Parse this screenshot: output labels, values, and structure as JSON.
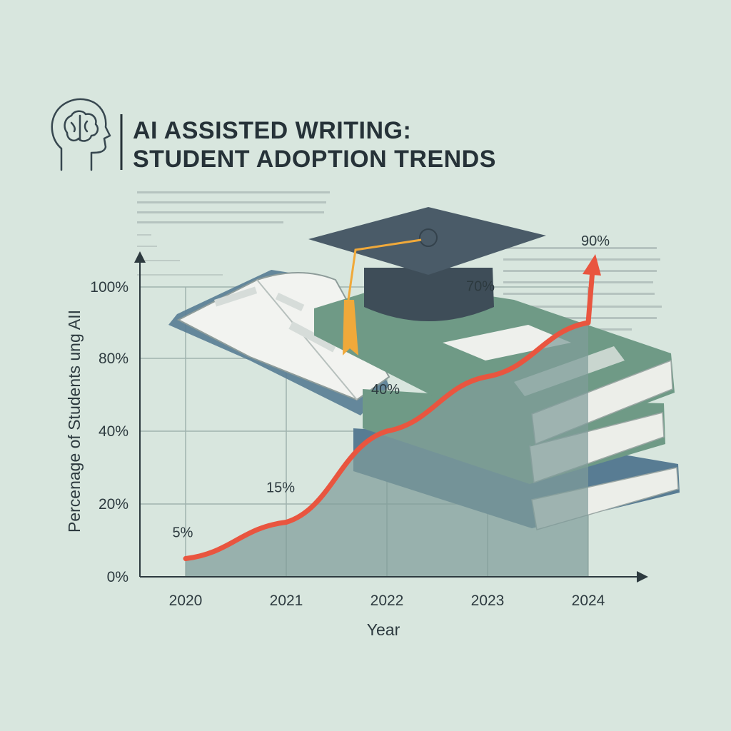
{
  "header": {
    "title_line1": "AI ASSISTED WRITING:",
    "title_line2": "STUDENT ADOPTION TRENDS",
    "icon": "brain-head-icon"
  },
  "colors": {
    "background": "#d8e6de",
    "line": "#e9553f",
    "area": "#7f9c9a",
    "grid": "#9fb3ae",
    "axis": "#2d3a3f",
    "book_green": "#6f9a86",
    "book_blue": "#587c93",
    "cap": "#4a5b68",
    "tassel": "#f0a93a"
  },
  "chart_data": {
    "type": "line",
    "title": "AI ASSISTED WRITING: STUDENT ADOPTION TRENDS",
    "xlabel": "Year",
    "ylabel": "Percenage of Students ung AII",
    "categories": [
      "2020",
      "2021",
      "2022",
      "2023",
      "2024"
    ],
    "y_tick_labels": [
      "0%",
      "20%",
      "40%",
      "80%",
      "100%"
    ],
    "series": [
      {
        "values": [
          5,
          15,
          40,
          70,
          90
        ],
        "data_labels": [
          "5%",
          "15%",
          "40%",
          "70%",
          "90%"
        ]
      }
    ],
    "grid": true,
    "area_fill": true
  }
}
